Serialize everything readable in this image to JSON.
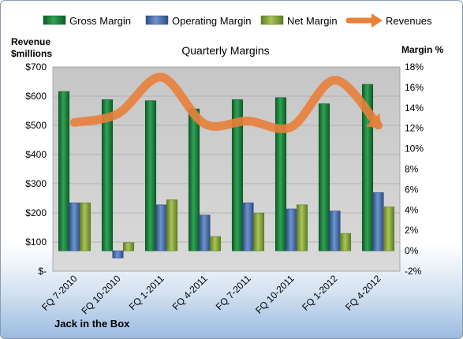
{
  "chart_data": {
    "type": "bar",
    "title": "Quarterly Margins",
    "footer": "Jack in the Box",
    "y_left_label": [
      "Revenue",
      "$millions"
    ],
    "y_right_label": "Margin %",
    "y_left_ticks": [
      "$-",
      "$100",
      "$200",
      "$300",
      "$400",
      "$500",
      "$600",
      "$700"
    ],
    "y_right_ticks": [
      "-2%",
      "0%",
      "2%",
      "4%",
      "6%",
      "8%",
      "10%",
      "12%",
      "14%",
      "16%",
      "18%"
    ],
    "ylim_left": [
      0,
      700
    ],
    "ylim_right": [
      -2,
      18
    ],
    "categories": [
      "FQ 7-2010",
      "FQ 10-2010",
      "FQ 1-2011",
      "FQ 4-2011",
      "FQ 7-2011",
      "FQ 10-2011",
      "FQ 1-2012",
      "FQ 4-2012"
    ],
    "series": [
      {
        "name": "Gross Margin",
        "axis": "right",
        "kind": "bar",
        "color": "#1f7a3a",
        "values": [
          15.6,
          14.8,
          14.7,
          13.9,
          14.8,
          15.0,
          14.4,
          16.3
        ]
      },
      {
        "name": "Operating Margin",
        "axis": "right",
        "kind": "bar",
        "color": "#4a6ea8",
        "values": [
          4.7,
          -0.7,
          4.5,
          3.5,
          4.7,
          4.1,
          3.9,
          5.7
        ]
      },
      {
        "name": "Net Margin",
        "axis": "right",
        "kind": "bar",
        "color": "#8aa83c",
        "values": [
          4.7,
          0.8,
          5.0,
          1.4,
          3.7,
          4.5,
          1.7,
          4.3
        ]
      },
      {
        "name": "Revenues",
        "axis": "left",
        "kind": "line",
        "color": "#e8803a",
        "values": [
          510,
          540,
          665,
          505,
          515,
          495,
          655,
          500
        ]
      }
    ],
    "grid": true,
    "legend_position": "top"
  }
}
